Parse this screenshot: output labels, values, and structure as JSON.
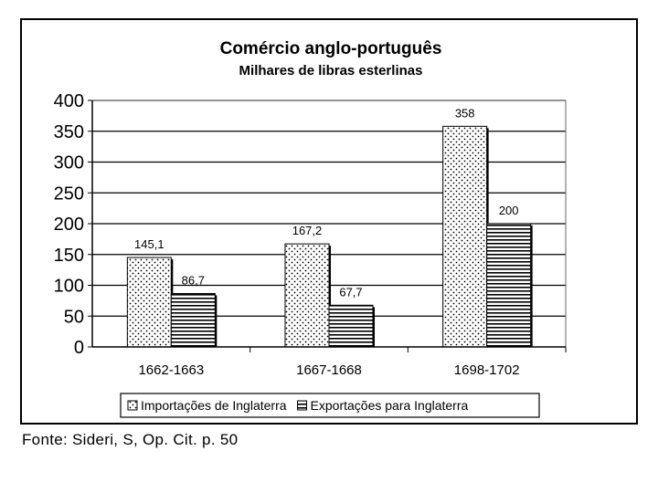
{
  "chart_data": {
    "type": "bar",
    "title": "Comércio anglo-português",
    "subtitle": "Milhares de libras esterlinas",
    "categories": [
      "1662-1663",
      "1667-1668",
      "1698-1702"
    ],
    "series": [
      {
        "name": "Importações de Inglaterra",
        "values": [
          145.1,
          167.2,
          358
        ],
        "labels": [
          "145,1",
          "167,2",
          "358"
        ],
        "pattern": "dots"
      },
      {
        "name": "Exportações para Inglaterra",
        "values": [
          86.7,
          67.7,
          200
        ],
        "labels": [
          "86,7",
          "67,7",
          "200"
        ],
        "pattern": "hlines"
      }
    ],
    "ylim": [
      0,
      400
    ],
    "yticks": [
      "0",
      "50",
      "100",
      "150",
      "200",
      "250",
      "300",
      "350",
      "400"
    ],
    "grid": true,
    "legend": "bottom",
    "colors": {
      "bar_fill": "#ffffff",
      "stroke": "#000000",
      "grid": "#000000"
    }
  },
  "source_note": "Fonte: Sideri, S, Op. Cit. p. 50"
}
